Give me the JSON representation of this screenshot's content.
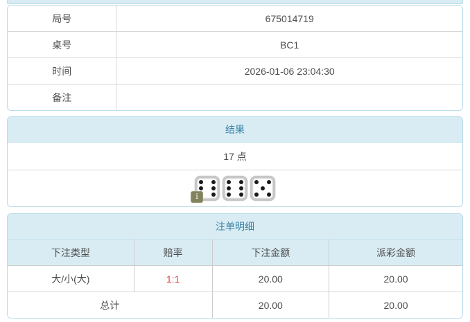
{
  "colors": {
    "header_bg": "#d9ecf4",
    "panel_border": "#b8dde9",
    "title_text": "#3a84a7",
    "body_text": "#4d4d4d",
    "odds_red": "#e8393c",
    "info_badge_bg": "#82825e"
  },
  "info_table": {
    "rows": [
      {
        "label": "局号",
        "value": "675014719"
      },
      {
        "label": "桌号",
        "value": "BC1"
      },
      {
        "label": "时间",
        "value": "2026-01-06 23:04:30"
      },
      {
        "label": "备注",
        "value": ""
      }
    ]
  },
  "result_panel": {
    "title": "结果",
    "points": "17 点",
    "dice": [
      6,
      6,
      5
    ],
    "info_icon_glyph": "i"
  },
  "bets_panel": {
    "title": "注单明细",
    "columns": [
      "下注类型",
      "赔率",
      "下注金额",
      "派彩金额"
    ],
    "rows": [
      {
        "type": "大/小(大)",
        "odds": "1:1",
        "bet": "20.00",
        "payout": "20.00"
      }
    ],
    "total": {
      "label": "总计",
      "bet": "20.00",
      "payout": "20.00"
    }
  }
}
